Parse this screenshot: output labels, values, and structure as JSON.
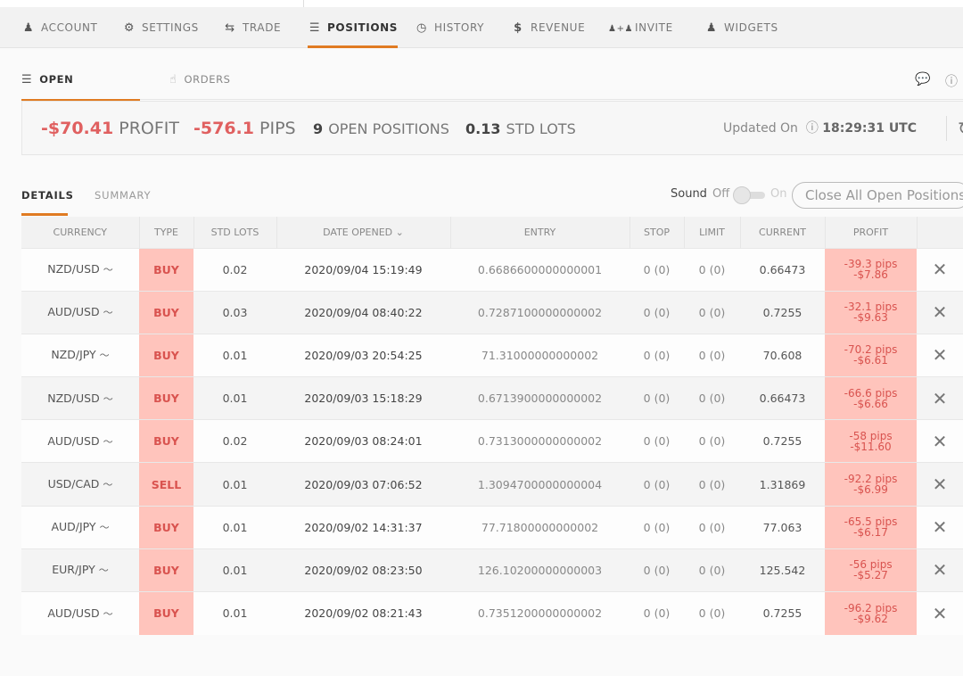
{
  "nav": {
    "items": [
      {
        "label": "ACCOUNT",
        "icon": "user-icon"
      },
      {
        "label": "SETTINGS",
        "icon": "gear-icon"
      },
      {
        "label": "TRADE",
        "icon": "swap-icon"
      },
      {
        "label": "POSITIONS",
        "icon": "list-icon",
        "active": true
      },
      {
        "label": "HISTORY",
        "icon": "clock-icon"
      },
      {
        "label": "REVENUE",
        "icon": "dollar-icon"
      },
      {
        "label": "INVITE",
        "icon": "invite-icon"
      },
      {
        "label": "WIDGETS",
        "icon": "user-icon"
      }
    ]
  },
  "subtabs": {
    "open_positions": "OPEN POSITIONS",
    "orders": "ORDERS"
  },
  "summary": {
    "profit_value": "-$70.41",
    "profit_label": "PROFIT",
    "pips_value": "-576.1",
    "pips_label": "PIPS",
    "positions_value": "9",
    "positions_label": "OPEN POSITIONS",
    "lots_value": "0.13",
    "lots_label": "STD LOTS",
    "updated_label": "Updated On",
    "updated_time": "18:29:31 UTC"
  },
  "detail_tabs": {
    "details": "DETAILS",
    "summary": "SUMMARY"
  },
  "sound": {
    "label": "Sound",
    "off": "Off",
    "on": "On",
    "state": "off"
  },
  "close_all_label": "Close All Open Positions",
  "colors": {
    "accent": "#e07b22",
    "negative": "#d9534f",
    "negative_bg": "#ffc4bc"
  },
  "table": {
    "headers": [
      "CURRENCY",
      "TYPE",
      "STD LOTS",
      "DATE OPENED",
      "ENTRY",
      "STOP",
      "LIMIT",
      "CURRENT",
      "PROFIT",
      ""
    ],
    "sort_column": "DATE OPENED",
    "rows": [
      {
        "currency": "NZD/USD",
        "type": "BUY",
        "lots": "0.02",
        "date": "2020/09/04 15:19:49",
        "entry": "0.6686600000000001",
        "stop": "0 (0)",
        "limit": "0 (0)",
        "current": "0.66473",
        "pips": "-39.3 pips",
        "profit": "-$7.86"
      },
      {
        "currency": "AUD/USD",
        "type": "BUY",
        "lots": "0.03",
        "date": "2020/09/04 08:40:22",
        "entry": "0.7287100000000002",
        "stop": "0 (0)",
        "limit": "0 (0)",
        "current": "0.7255",
        "pips": "-32.1 pips",
        "profit": "-$9.63"
      },
      {
        "currency": "NZD/JPY",
        "type": "BUY",
        "lots": "0.01",
        "date": "2020/09/03 20:54:25",
        "entry": "71.31000000000002",
        "stop": "0 (0)",
        "limit": "0 (0)",
        "current": "70.608",
        "pips": "-70.2 pips",
        "profit": "-$6.61"
      },
      {
        "currency": "NZD/USD",
        "type": "BUY",
        "lots": "0.01",
        "date": "2020/09/03 15:18:29",
        "entry": "0.6713900000000002",
        "stop": "0 (0)",
        "limit": "0 (0)",
        "current": "0.66473",
        "pips": "-66.6 pips",
        "profit": "-$6.66"
      },
      {
        "currency": "AUD/USD",
        "type": "BUY",
        "lots": "0.02",
        "date": "2020/09/03 08:24:01",
        "entry": "0.7313000000000002",
        "stop": "0 (0)",
        "limit": "0 (0)",
        "current": "0.7255",
        "pips": "-58 pips",
        "profit": "-$11.60"
      },
      {
        "currency": "USD/CAD",
        "type": "SELL",
        "lots": "0.01",
        "date": "2020/09/03 07:06:52",
        "entry": "1.3094700000000004",
        "stop": "0 (0)",
        "limit": "0 (0)",
        "current": "1.31869",
        "pips": "-92.2 pips",
        "profit": "-$6.99"
      },
      {
        "currency": "AUD/JPY",
        "type": "BUY",
        "lots": "0.01",
        "date": "2020/09/02 14:31:37",
        "entry": "77.71800000000002",
        "stop": "0 (0)",
        "limit": "0 (0)",
        "current": "77.063",
        "pips": "-65.5 pips",
        "profit": "-$6.17"
      },
      {
        "currency": "EUR/JPY",
        "type": "BUY",
        "lots": "0.01",
        "date": "2020/09/02 08:23:50",
        "entry": "126.10200000000003",
        "stop": "0 (0)",
        "limit": "0 (0)",
        "current": "125.542",
        "pips": "-56 pips",
        "profit": "-$5.27"
      },
      {
        "currency": "AUD/USD",
        "type": "BUY",
        "lots": "0.01",
        "date": "2020/09/02 08:21:43",
        "entry": "0.7351200000000002",
        "stop": "0 (0)",
        "limit": "0 (0)",
        "current": "0.7255",
        "pips": "-96.2 pips",
        "profit": "-$9.62"
      }
    ]
  }
}
